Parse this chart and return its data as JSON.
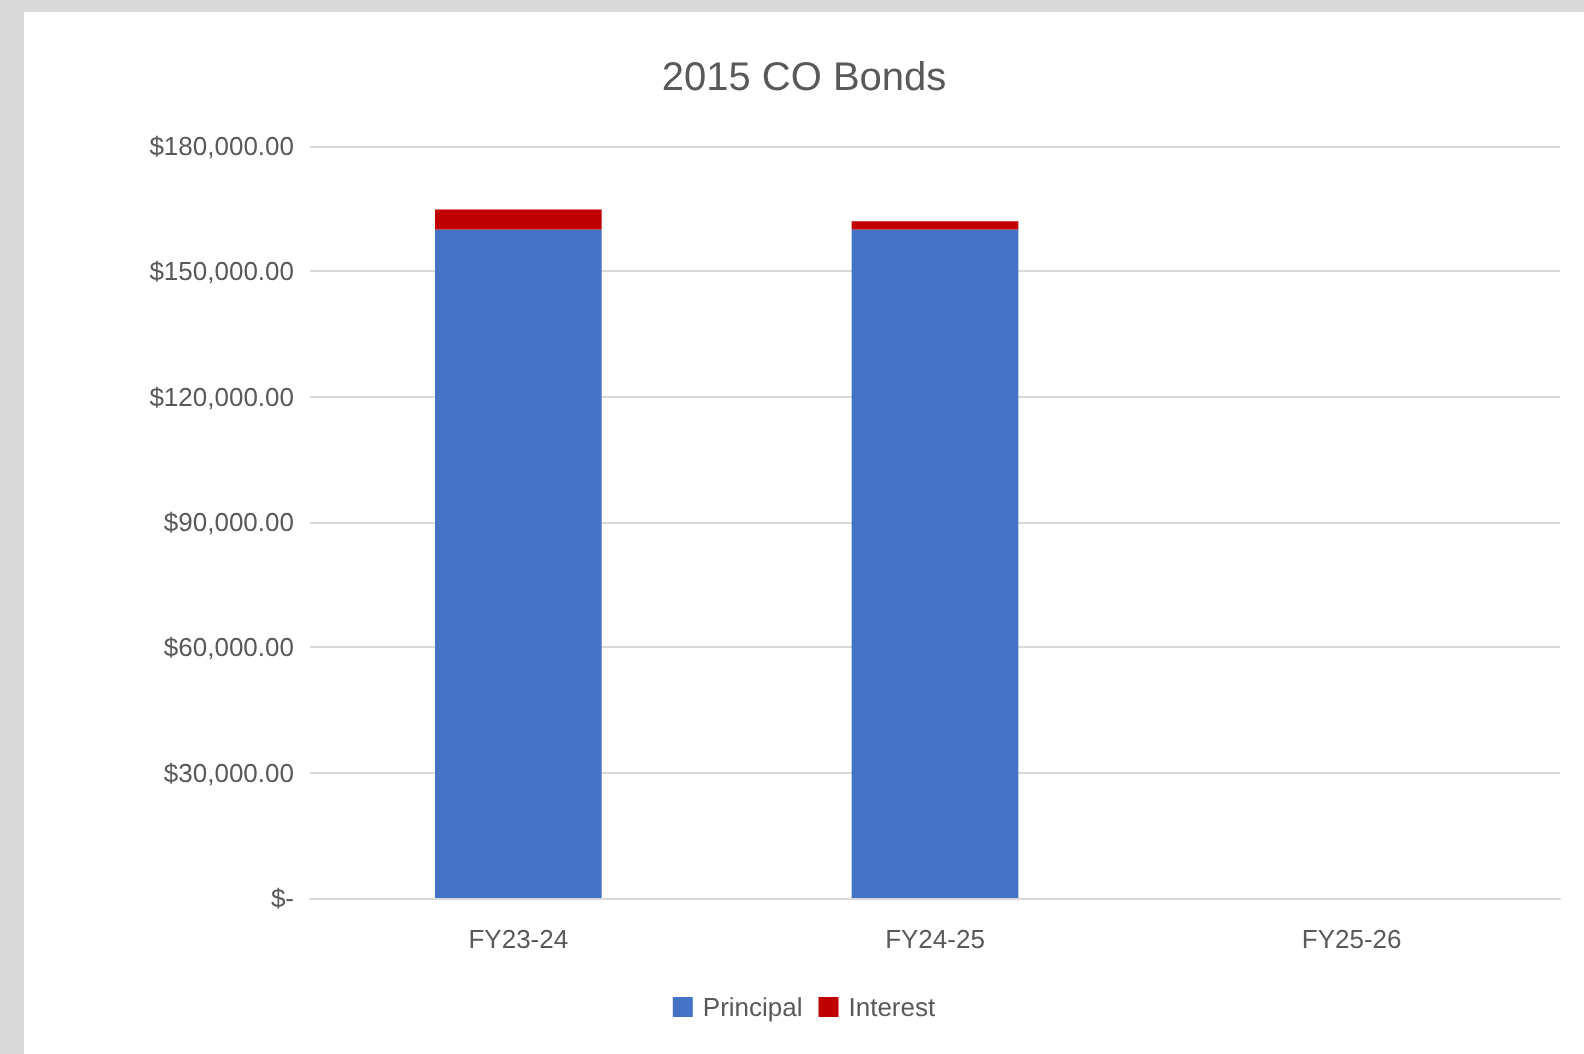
{
  "chart_data": {
    "type": "bar",
    "title": "2015 CO Bonds",
    "categories": [
      "FY23-24",
      "FY24-25",
      "FY25-26"
    ],
    "stacked": true,
    "series": [
      {
        "name": "Principal",
        "color": "#4472c4",
        "values": [
          160000,
          160000,
          0
        ]
      },
      {
        "name": "Interest",
        "color": "#c00000",
        "values": [
          4800,
          2000,
          0
        ]
      }
    ],
    "ylim": [
      0,
      180000
    ],
    "yticks": [
      {
        "value": 0,
        "label": "$-"
      },
      {
        "value": 30000,
        "label": "$30,000.00"
      },
      {
        "value": 60000,
        "label": "$60,000.00"
      },
      {
        "value": 90000,
        "label": "$90,000.00"
      },
      {
        "value": 120000,
        "label": "$120,000.00"
      },
      {
        "value": 150000,
        "label": "$150,000.00"
      },
      {
        "value": 180000,
        "label": "$180,000.00"
      }
    ],
    "grid": true,
    "legend": "bottom"
  }
}
